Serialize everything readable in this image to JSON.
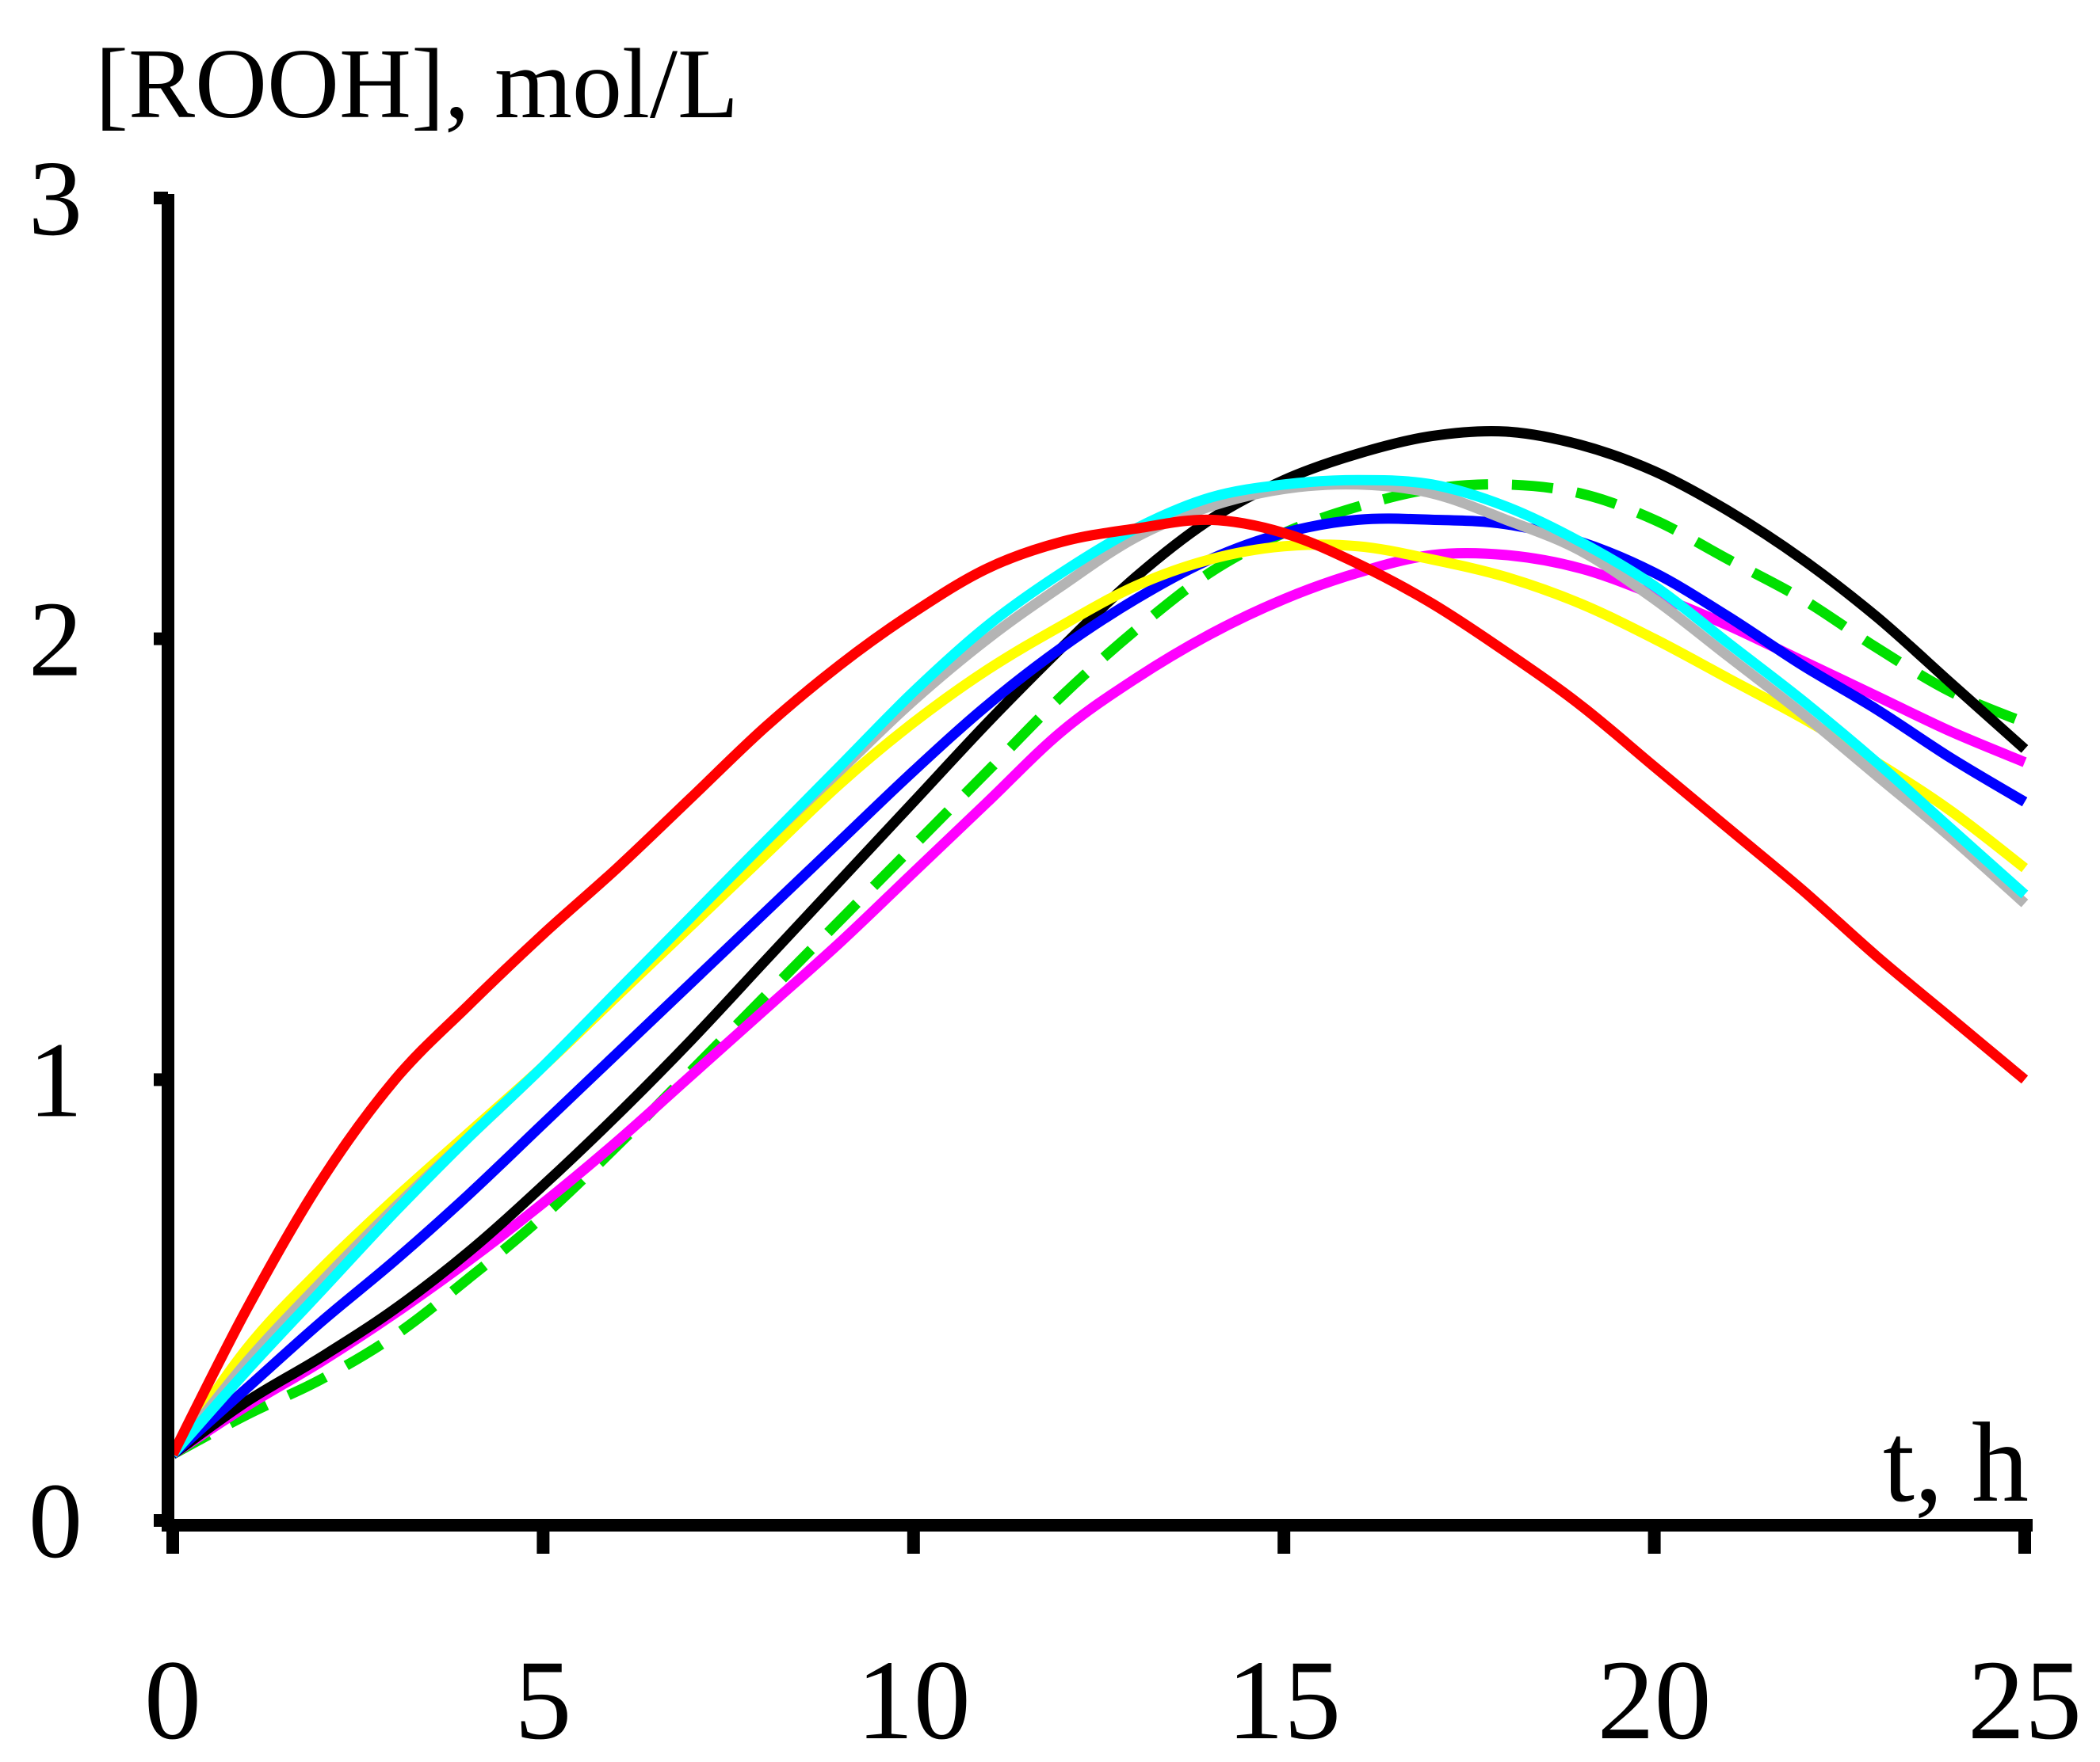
{
  "chart_data": {
    "type": "line",
    "title": "",
    "ylabel": "[ROOH], mol/L",
    "xlabel": "t, h",
    "xlim": [
      0,
      25
    ],
    "ylim": [
      0,
      3
    ],
    "xticks": [
      0,
      5,
      10,
      15,
      20,
      25
    ],
    "xtick_labels": [
      "0",
      "5",
      "10",
      "15",
      "20",
      "25"
    ],
    "yticks": [
      0,
      1,
      2,
      3
    ],
    "ytick_labels": [
      "0",
      "1",
      "2",
      "3"
    ],
    "grid": false,
    "legend": "none",
    "x": [
      0,
      1,
      2,
      3,
      4,
      5,
      6,
      7,
      8,
      9,
      10,
      11,
      12,
      13,
      14,
      15,
      16,
      17,
      18,
      19,
      20,
      21,
      22,
      23,
      24,
      25
    ],
    "series": [
      {
        "name": "green-dashed",
        "color": "#00e000",
        "dashed": true,
        "values": [
          0.15,
          0.24,
          0.32,
          0.42,
          0.55,
          0.69,
          0.85,
          1.02,
          1.19,
          1.36,
          1.53,
          1.7,
          1.87,
          2.02,
          2.15,
          2.24,
          2.3,
          2.34,
          2.35,
          2.33,
          2.27,
          2.18,
          2.09,
          1.98,
          1.88,
          1.81
        ]
      },
      {
        "name": "magenta",
        "color": "#ff00ff",
        "dashed": false,
        "values": [
          0.15,
          0.26,
          0.36,
          0.47,
          0.59,
          0.72,
          0.86,
          1.01,
          1.16,
          1.31,
          1.47,
          1.63,
          1.79,
          1.91,
          2.01,
          2.09,
          2.15,
          2.19,
          2.19,
          2.16,
          2.1,
          2.03,
          1.95,
          1.87,
          1.79,
          1.72
        ]
      },
      {
        "name": "black",
        "color": "#000000",
        "dashed": false,
        "values": [
          0.15,
          0.27,
          0.37,
          0.48,
          0.61,
          0.76,
          0.92,
          1.09,
          1.27,
          1.45,
          1.63,
          1.81,
          1.98,
          2.14,
          2.27,
          2.36,
          2.42,
          2.46,
          2.47,
          2.44,
          2.38,
          2.29,
          2.18,
          2.05,
          1.9,
          1.75
        ]
      },
      {
        "name": "blue",
        "color": "#0000ff",
        "dashed": false,
        "values": [
          0.15,
          0.3,
          0.45,
          0.59,
          0.74,
          0.9,
          1.06,
          1.22,
          1.38,
          1.54,
          1.7,
          1.85,
          1.98,
          2.09,
          2.18,
          2.24,
          2.27,
          2.27,
          2.26,
          2.22,
          2.15,
          2.05,
          1.94,
          1.84,
          1.73,
          1.63
        ]
      },
      {
        "name": "yellow",
        "color": "#ffff00",
        "dashed": false,
        "values": [
          0.15,
          0.39,
          0.57,
          0.73,
          0.88,
          1.03,
          1.19,
          1.35,
          1.51,
          1.67,
          1.81,
          1.93,
          2.03,
          2.12,
          2.18,
          2.21,
          2.21,
          2.18,
          2.14,
          2.08,
          2.0,
          1.91,
          1.82,
          1.72,
          1.61,
          1.48
        ]
      },
      {
        "name": "gray",
        "color": "#b4b4b4",
        "dashed": false,
        "values": [
          0.15,
          0.36,
          0.54,
          0.71,
          0.87,
          1.03,
          1.2,
          1.37,
          1.54,
          1.7,
          1.86,
          2.0,
          2.12,
          2.23,
          2.3,
          2.34,
          2.35,
          2.33,
          2.27,
          2.2,
          2.09,
          1.96,
          1.83,
          1.69,
          1.55,
          1.4
        ]
      },
      {
        "name": "cyan",
        "color": "#00ffff",
        "dashed": false,
        "values": [
          0.15,
          0.34,
          0.52,
          0.7,
          0.87,
          1.03,
          1.2,
          1.37,
          1.54,
          1.71,
          1.88,
          2.03,
          2.15,
          2.25,
          2.32,
          2.35,
          2.36,
          2.35,
          2.3,
          2.22,
          2.12,
          1.99,
          1.86,
          1.72,
          1.57,
          1.42
        ]
      },
      {
        "name": "red",
        "color": "#ff0000",
        "dashed": false,
        "values": [
          0.15,
          0.48,
          0.77,
          1.0,
          1.17,
          1.33,
          1.48,
          1.64,
          1.8,
          1.94,
          2.06,
          2.16,
          2.22,
          2.25,
          2.27,
          2.24,
          2.17,
          2.08,
          1.97,
          1.85,
          1.71,
          1.57,
          1.43,
          1.28,
          1.14,
          1.0
        ]
      }
    ]
  }
}
